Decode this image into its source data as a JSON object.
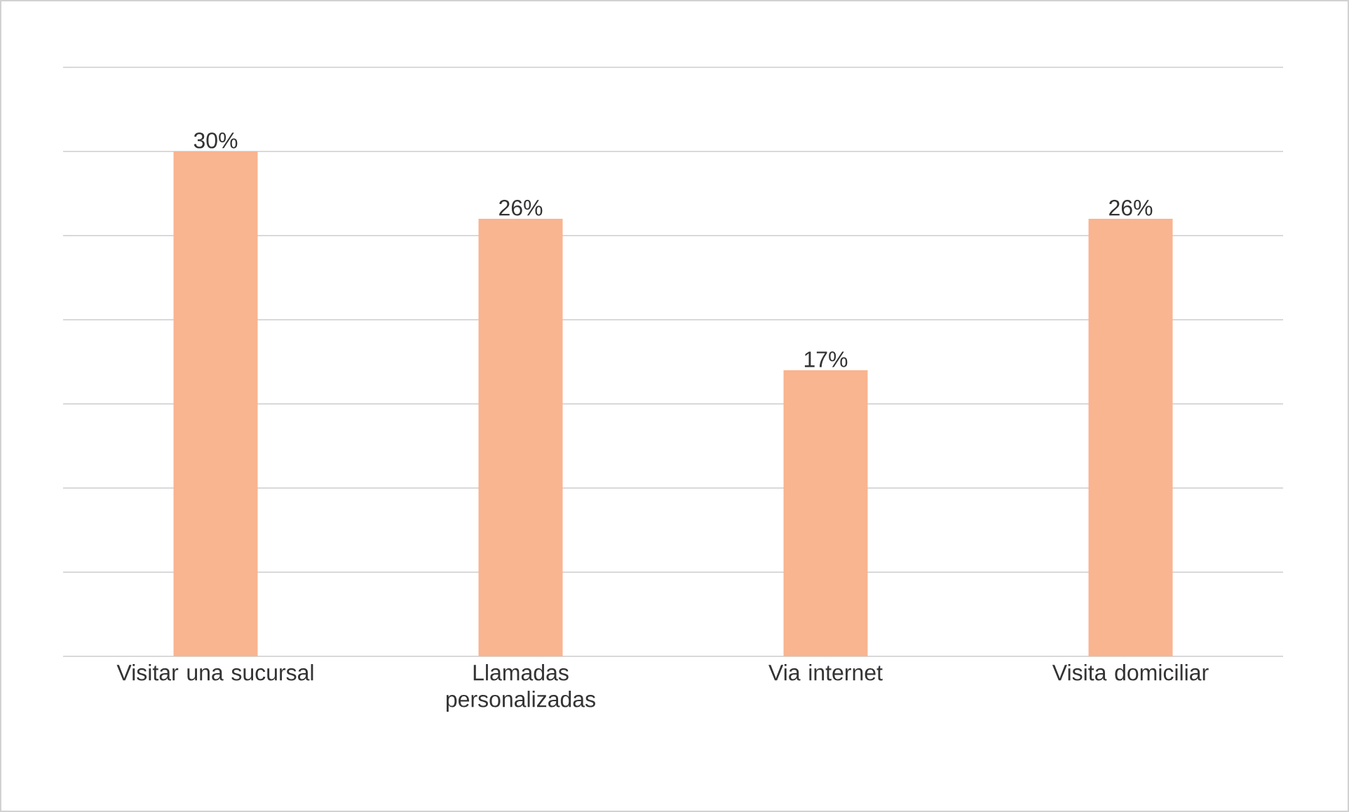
{
  "chart_data": {
    "type": "bar",
    "categories": [
      "Visitar una sucursal",
      "Llamadas personalizadas",
      "Via internet",
      "Visita domiciliar"
    ],
    "values": [
      30,
      26,
      17,
      26
    ],
    "value_labels": [
      "30%",
      "26%",
      "17%",
      "26%"
    ],
    "color": "#f9b490",
    "ylim": [
      0,
      35
    ],
    "yticks": [
      {
        "value": 0,
        "label": null
      },
      {
        "value": 5,
        "label": null
      },
      {
        "value": 10,
        "label": null
      },
      {
        "value": 15,
        "label": null
      },
      {
        "value": 20,
        "label": null
      },
      {
        "value": 25,
        "label": null
      },
      {
        "value": 30,
        "label": null
      },
      {
        "value": 35,
        "label": null
      }
    ],
    "grid": "y",
    "tick_labels": "x"
  }
}
